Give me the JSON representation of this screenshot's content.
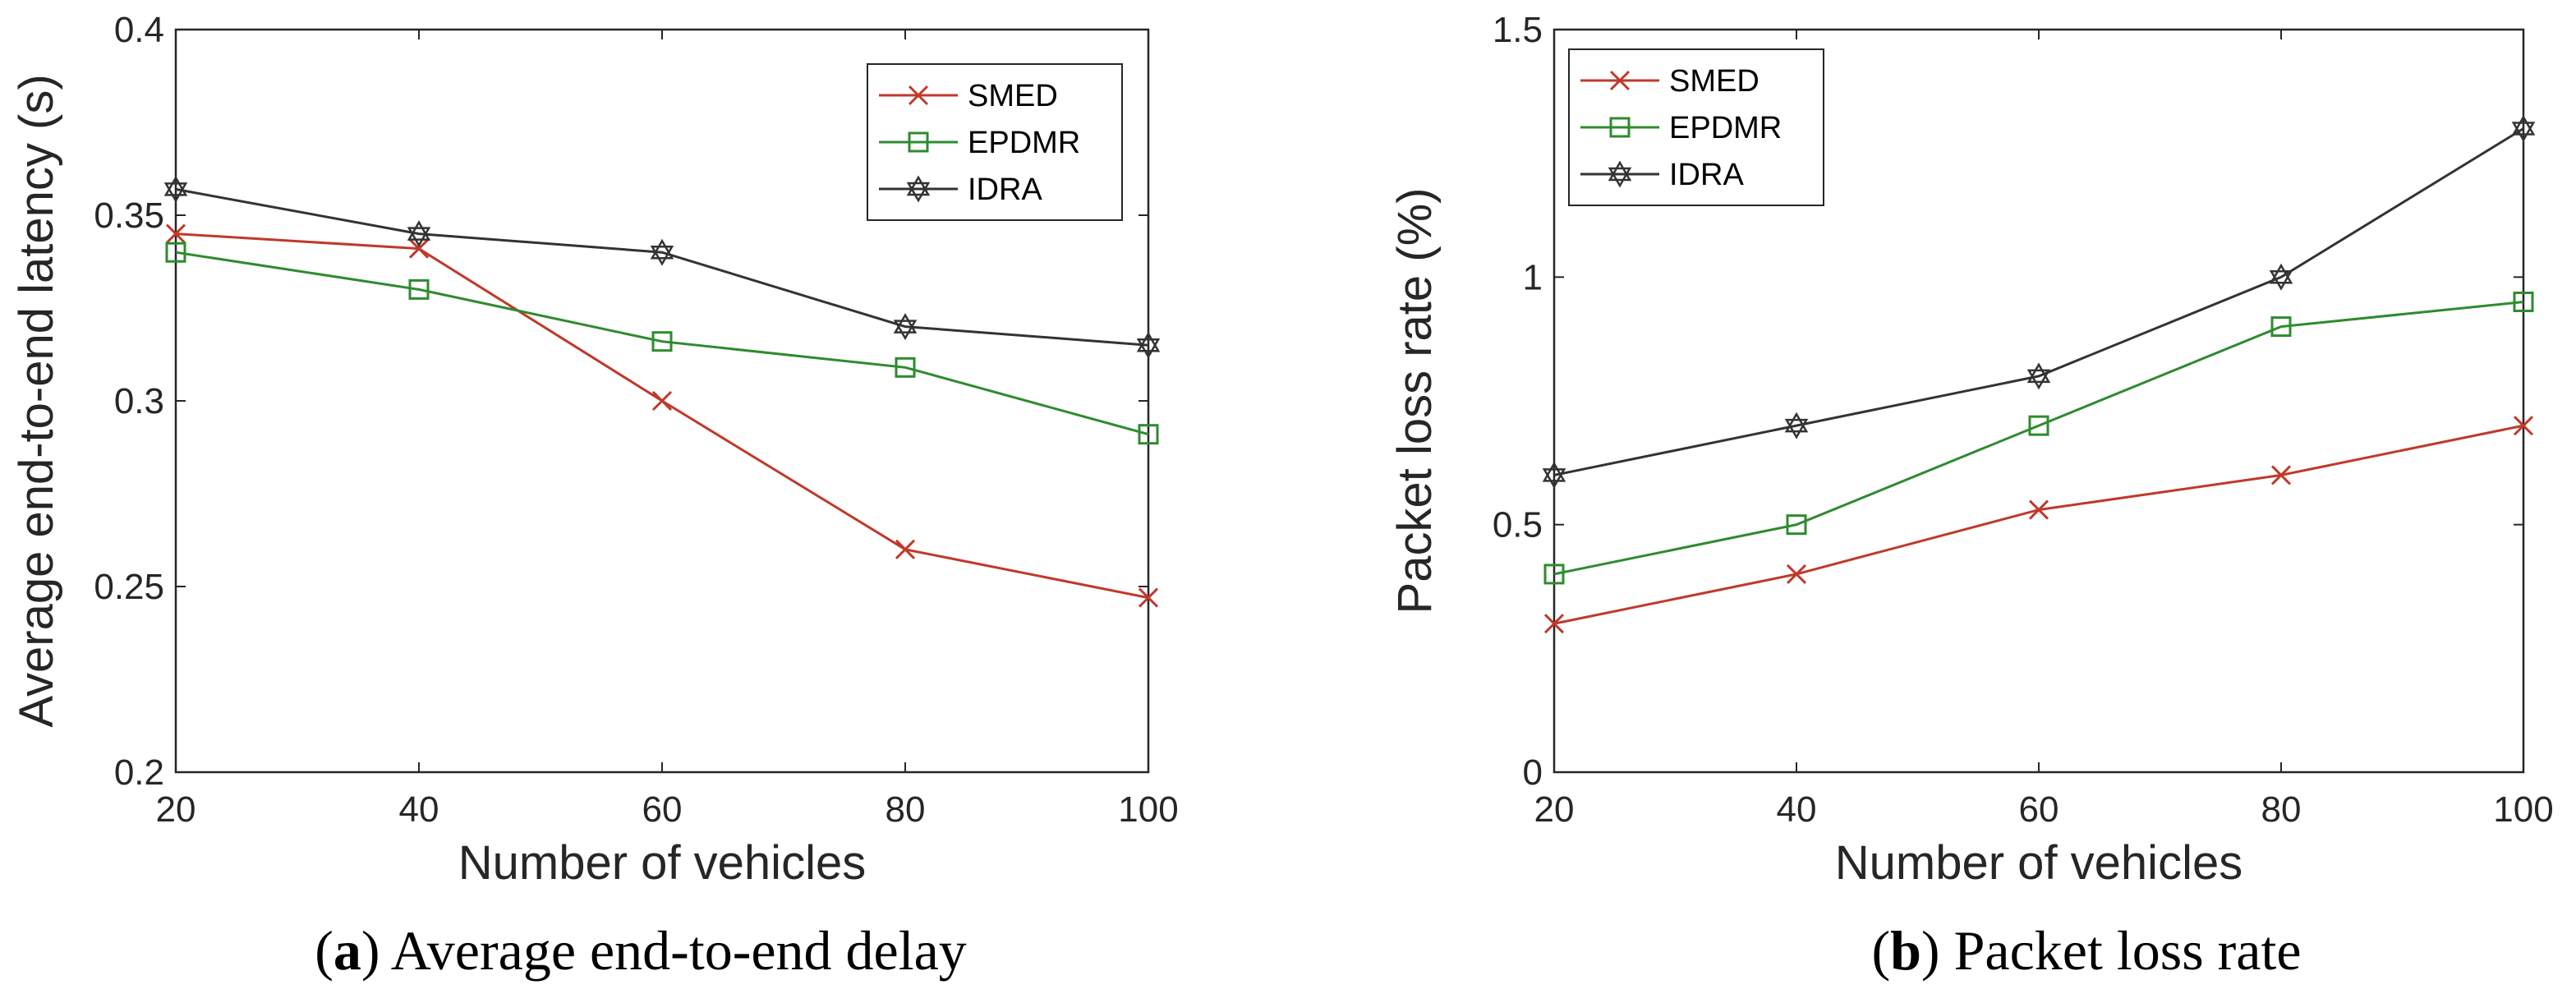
{
  "chart_data": [
    {
      "type": "line",
      "id": "a",
      "caption_letter": "a",
      "caption_text": "Average end-to-end delay",
      "xlabel": "Number of vehicles",
      "ylabel": "Average end-to-end latency (s)",
      "x": [
        20,
        40,
        60,
        80,
        100
      ],
      "xticks": [
        "20",
        "40",
        "60",
        "80",
        "100"
      ],
      "xlim": [
        20,
        100
      ],
      "ylim": [
        0.2,
        0.4
      ],
      "yticks": [
        0.2,
        0.25,
        0.3,
        0.35,
        0.4
      ],
      "ytick_labels": [
        "0.2",
        "0.25",
        "0.3",
        "0.35",
        "0.4"
      ],
      "legend_position": "top-right",
      "series": [
        {
          "name": "SMED",
          "color": "#c0392b",
          "marker": "x",
          "values": [
            0.345,
            0.341,
            0.3,
            0.26,
            0.247
          ]
        },
        {
          "name": "EPDMR",
          "color": "#2e8b2e",
          "marker": "square",
          "values": [
            0.34,
            0.33,
            0.316,
            0.309,
            0.291
          ]
        },
        {
          "name": "IDRA",
          "color": "#333333",
          "marker": "star",
          "values": [
            0.357,
            0.345,
            0.34,
            0.32,
            0.315
          ]
        }
      ]
    },
    {
      "type": "line",
      "id": "b",
      "caption_letter": "b",
      "caption_text": "Packet loss rate",
      "xlabel": "Number of vehicles",
      "ylabel": "Packet loss rate (%)",
      "x": [
        20,
        40,
        60,
        80,
        100
      ],
      "xticks": [
        "20",
        "40",
        "60",
        "80",
        "100"
      ],
      "xlim": [
        20,
        100
      ],
      "ylim": [
        0,
        1.5
      ],
      "yticks": [
        0,
        0.5,
        1,
        1.5
      ],
      "ytick_labels": [
        "0",
        "0.5",
        "1",
        "1.5"
      ],
      "legend_position": "top-left",
      "series": [
        {
          "name": "SMED",
          "color": "#c0392b",
          "marker": "x",
          "values": [
            0.3,
            0.4,
            0.53,
            0.6,
            0.7
          ]
        },
        {
          "name": "EPDMR",
          "color": "#2e8b2e",
          "marker": "square",
          "values": [
            0.4,
            0.5,
            0.7,
            0.9,
            0.95
          ]
        },
        {
          "name": "IDRA",
          "color": "#333333",
          "marker": "star",
          "values": [
            0.6,
            0.7,
            0.8,
            1.0,
            1.3
          ]
        }
      ]
    }
  ]
}
